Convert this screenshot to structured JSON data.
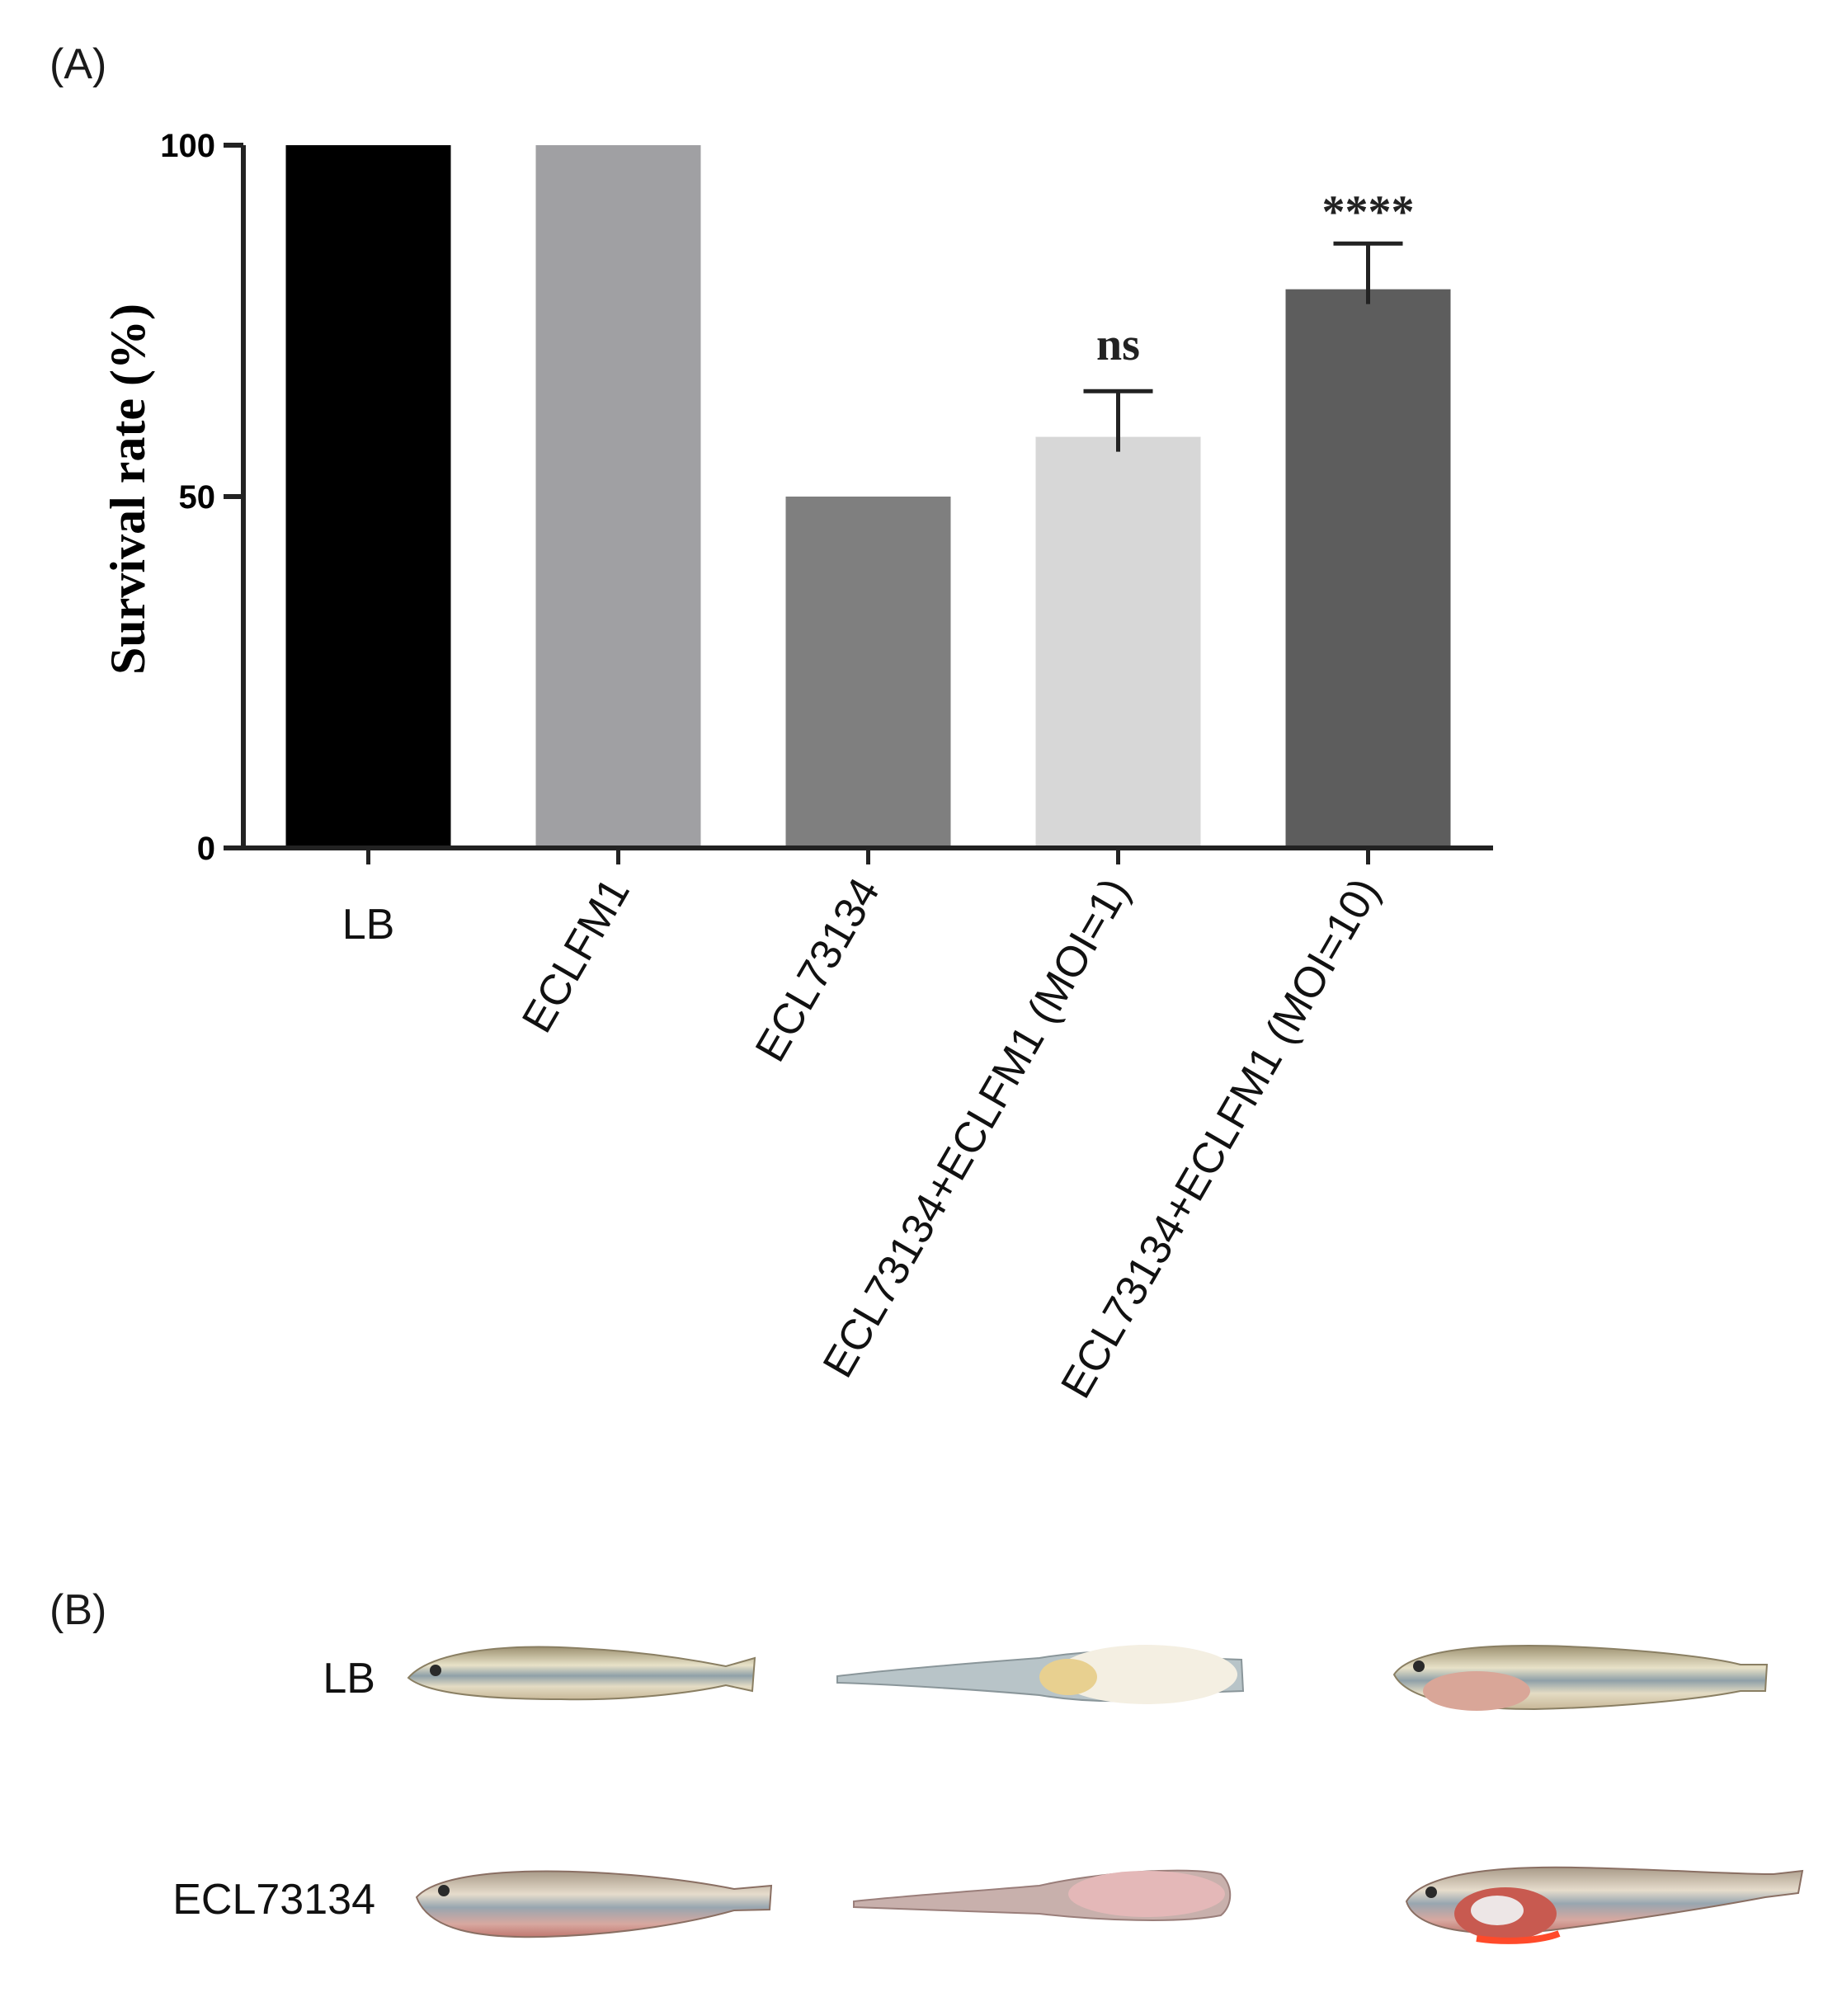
{
  "panel_a_label": "(A)",
  "panel_b_label": "(B)",
  "chart_data": {
    "type": "bar",
    "title": "",
    "xlabel": "",
    "ylabel": "Survival rate (%)",
    "ylim": [
      0,
      100
    ],
    "yticks": [
      0,
      50,
      100
    ],
    "categories": [
      "LB",
      "ECLFM1",
      "ECL73134",
      "ECL73134+ECLFM1 (MOI=1)",
      "ECL73134+ECLFM1 (MOI=10)"
    ],
    "values": [
      100,
      100,
      50,
      58.5,
      79.5
    ],
    "errors": [
      0,
      0,
      0,
      6.5,
      6.5
    ],
    "annotations": [
      "",
      "",
      "",
      "ns",
      "****"
    ],
    "colors": [
      "#000000",
      "#a0a0a3",
      "#7f7f7f",
      "#d7d7d7",
      "#5d5d5d"
    ],
    "grid": false
  },
  "photos": {
    "rows": [
      {
        "label": "LB"
      },
      {
        "label": "ECL73134"
      }
    ]
  }
}
